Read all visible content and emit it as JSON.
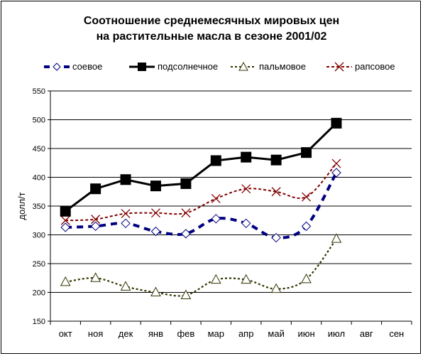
{
  "chart_data": {
    "type": "line",
    "title": "Соотношение среднемесячных мировых  цен",
    "subtitle": "на растительные масла в сезоне 2001/02",
    "ylabel": "долл/т",
    "xlabel": "",
    "categories": [
      "окт",
      "ноя",
      "дек",
      "янв",
      "фев",
      "мар",
      "апр",
      "май",
      "июн",
      "июл",
      "авг",
      "сен"
    ],
    "ylim": [
      150,
      550
    ],
    "yticks": [
      150,
      200,
      250,
      300,
      350,
      400,
      450,
      500,
      550
    ],
    "grid": true,
    "legend_position": "top",
    "series": [
      {
        "name": "соевое",
        "color": "#000080",
        "marker": "diamond",
        "dash": "dashed-thick",
        "values": [
          313,
          315,
          320,
          306,
          302,
          328,
          320,
          295,
          315,
          408,
          null,
          null
        ]
      },
      {
        "name": "подсолнечное",
        "color": "#000000",
        "marker": "square",
        "dash": "solid",
        "values": [
          341,
          380,
          396,
          385,
          389,
          429,
          435,
          430,
          443,
          494,
          null,
          null
        ]
      },
      {
        "name": "пальмовое",
        "color": "#333300",
        "marker": "triangle",
        "dash": "dotted",
        "values": [
          218,
          225,
          210,
          200,
          195,
          222,
          222,
          206,
          223,
          293,
          null,
          null
        ]
      },
      {
        "name": "рапсовое",
        "color": "#800000",
        "marker": "x",
        "dash": "dashed",
        "values": [
          325,
          327,
          337,
          338,
          338,
          363,
          380,
          375,
          366,
          424,
          null,
          null
        ]
      }
    ]
  }
}
